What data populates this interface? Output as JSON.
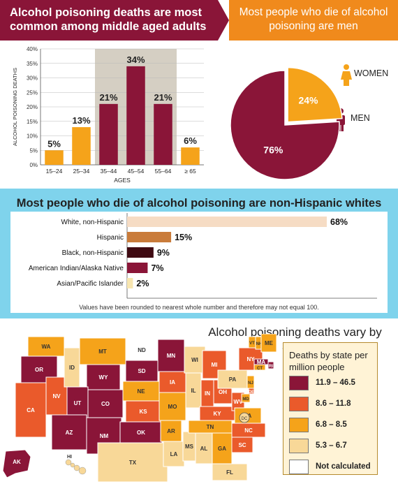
{
  "headers": {
    "left": "Alcohol poisoning deaths are most common among middle aged adults",
    "right": "Most people who die of alcohol poisoning are men"
  },
  "chart_data": [
    {
      "type": "bar",
      "categories": [
        "15–24",
        "25–34",
        "35–44",
        "45–54",
        "55–64",
        "≥ 65"
      ],
      "values": [
        5,
        13,
        21,
        34,
        21,
        6
      ],
      "data_labels": [
        "5%",
        "13%",
        "21%",
        "34%",
        "21%",
        "6%"
      ],
      "ylabel": "ALCOHOL POISONING DEATHS",
      "xlabel": "AGES",
      "ylim": [
        0,
        40
      ],
      "yticks": [
        "0%",
        "5%",
        "10%",
        "15%",
        "20%",
        "25%",
        "30%",
        "35%",
        "40%"
      ],
      "highlight": "35–64",
      "colors": {
        "orange": "#f5a31a",
        "maroon": "#8a1538",
        "highlight_bg": "#d5cfc3"
      }
    },
    {
      "type": "pie",
      "slices": [
        {
          "label": "WOMEN",
          "value": 24,
          "text": "24%",
          "color": "#f5a31a"
        },
        {
          "label": "MEN",
          "value": 76,
          "text": "76%",
          "color": "#8a1538"
        }
      ]
    },
    {
      "type": "bar",
      "orientation": "horizontal",
      "title": "Most people who die of alcohol poisoning are non-Hispanic whites",
      "categories": [
        "White, non-Hispanic",
        "Hispanic",
        "Black, non-Hispanic",
        "American Indian/Alaska Native",
        "Asian/Pacific Islander"
      ],
      "values": [
        68,
        15,
        9,
        7,
        2
      ],
      "data_labels": [
        "68%",
        "15%",
        "9%",
        "7%",
        "2%"
      ],
      "colors": [
        "#f6dcc4",
        "#c97b3a",
        "#3f0a12",
        "#8a1538",
        "#f8e6b0"
      ],
      "note": "Values have been rounded to nearest whole number and therefore may not equal 100."
    },
    {
      "type": "choropleth",
      "title": "Alcohol poisoning deaths vary by state",
      "legend_title": "Deaths by state per million people",
      "bins": [
        {
          "label": "11.9 – 46.5",
          "color": "#8a1538"
        },
        {
          "label": "8.6 – 11.8",
          "color": "#ea5a2b"
        },
        {
          "label": "6.8 – 8.5",
          "color": "#f5a31a"
        },
        {
          "label": "5.3 – 6.7",
          "color": "#f8d898"
        },
        {
          "label": "Not calculated",
          "color": "#ffffff"
        }
      ],
      "states": {
        "AK": 0,
        "OR": 0,
        "AZ": 0,
        "UT": 0,
        "WY": 0,
        "CO": 0,
        "NM": 0,
        "SD": 0,
        "MN": 0,
        "OK": 0,
        "RI": 0,
        "MA": 0,
        "CA": 1,
        "NV": 1,
        "KS": 1,
        "IA": 1,
        "MI": 1,
        "IN": 1,
        "OH": 1,
        "KY": 1,
        "WV": 1,
        "NC": 1,
        "SC": 1,
        "NY": 1,
        "DE": 1,
        "WA": 2,
        "MT": 2,
        "NE": 2,
        "MO": 2,
        "AR": 2,
        "TN": 2,
        "GA": 2,
        "VA": 2,
        "ME": 2,
        "VT": 2,
        "NH": 2,
        "CT": 2,
        "NJ": 2,
        "MD": 2,
        "ID": 3,
        "TX": 3,
        "LA": 3,
        "MS": 3,
        "AL": 3,
        "FL": 3,
        "IL": 3,
        "WI": 3,
        "PA": 3,
        "HI": 3,
        "DC": 3,
        "ND": 4
      }
    }
  ]
}
